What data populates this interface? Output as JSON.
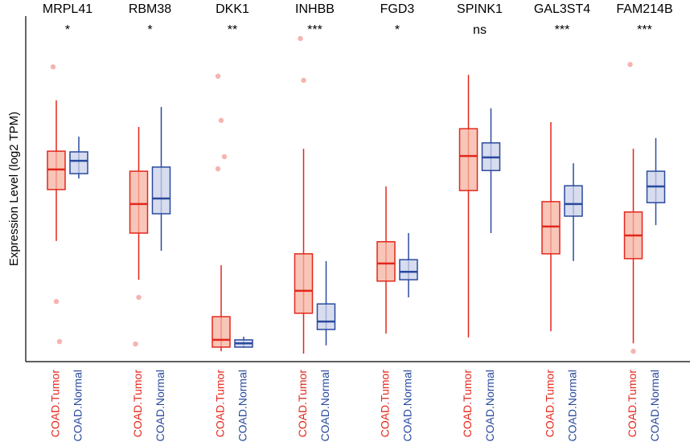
{
  "chart_data": {
    "type": "box",
    "ylabel": "Expression Level (log2 TPM)",
    "categories": [
      "MRPL41",
      "RBM38",
      "DKK1",
      "INHBB",
      "FGD3",
      "SPINK1",
      "GAL3ST4",
      "FAM214B"
    ],
    "annotations": [
      "*",
      "*",
      "**",
      "***",
      "*",
      "ns",
      "***",
      "***"
    ],
    "ylim": [
      0,
      10
    ],
    "series": [
      {
        "name": "COAD.Tumor",
        "color": "#e3271c",
        "fill": "#f5b3a0",
        "boxes": [
          {
            "low": 3.49,
            "q1": 4.98,
            "median": 5.56,
            "q3": 6.09,
            "high": 7.56,
            "outliers": [
              8.53,
              1.74,
              0.58
            ]
          },
          {
            "low": 2.37,
            "q1": 3.72,
            "median": 4.56,
            "q3": 5.51,
            "high": 6.79,
            "outliers": [
              0.51,
              1.86
            ]
          },
          {
            "low": 0.3,
            "q1": 0.42,
            "median": 0.63,
            "q3": 1.3,
            "high": 2.79,
            "outliers": [
              8.26,
              6.98,
              5.93,
              5.58
            ]
          },
          {
            "low": 0.23,
            "q1": 1.4,
            "median": 2.05,
            "q3": 3.12,
            "high": 6.16,
            "outliers": [
              9.35,
              8.14
            ]
          },
          {
            "low": 0.81,
            "q1": 2.33,
            "median": 2.84,
            "q3": 3.47,
            "high": 5.07,
            "outliers": []
          },
          {
            "low": 0.7,
            "q1": 4.95,
            "median": 5.95,
            "q3": 6.74,
            "high": 8.3,
            "outliers": []
          },
          {
            "low": 0.88,
            "q1": 3.12,
            "median": 3.91,
            "q3": 4.63,
            "high": 6.93,
            "outliers": []
          },
          {
            "low": 0.53,
            "q1": 2.98,
            "median": 3.65,
            "q3": 4.33,
            "high": 6.16,
            "outliers": [
              8.6,
              0.3
            ]
          }
        ]
      },
      {
        "name": "COAD.Normal",
        "color": "#2a4a9f",
        "fill": "#c9d0ea",
        "boxes": [
          {
            "low": 5.3,
            "q1": 5.44,
            "median": 5.81,
            "q3": 6.07,
            "high": 6.51,
            "outliers": []
          },
          {
            "low": 3.21,
            "q1": 4.28,
            "median": 4.72,
            "q3": 5.63,
            "high": 7.37,
            "outliers": []
          },
          {
            "low": 0.4,
            "q1": 0.42,
            "median": 0.53,
            "q3": 0.63,
            "high": 0.72,
            "outliers": []
          },
          {
            "low": 0.47,
            "q1": 0.93,
            "median": 1.16,
            "q3": 1.67,
            "high": 2.91,
            "outliers": []
          },
          {
            "low": 1.86,
            "q1": 2.37,
            "median": 2.6,
            "q3": 2.95,
            "high": 3.72,
            "outliers": []
          },
          {
            "low": 3.72,
            "q1": 5.53,
            "median": 5.91,
            "q3": 6.33,
            "high": 7.33,
            "outliers": []
          },
          {
            "low": 2.91,
            "q1": 4.21,
            "median": 4.56,
            "q3": 5.09,
            "high": 5.74,
            "outliers": []
          },
          {
            "low": 3.95,
            "q1": 4.6,
            "median": 5.07,
            "q3": 5.51,
            "high": 6.47,
            "outliers": []
          }
        ]
      }
    ]
  }
}
